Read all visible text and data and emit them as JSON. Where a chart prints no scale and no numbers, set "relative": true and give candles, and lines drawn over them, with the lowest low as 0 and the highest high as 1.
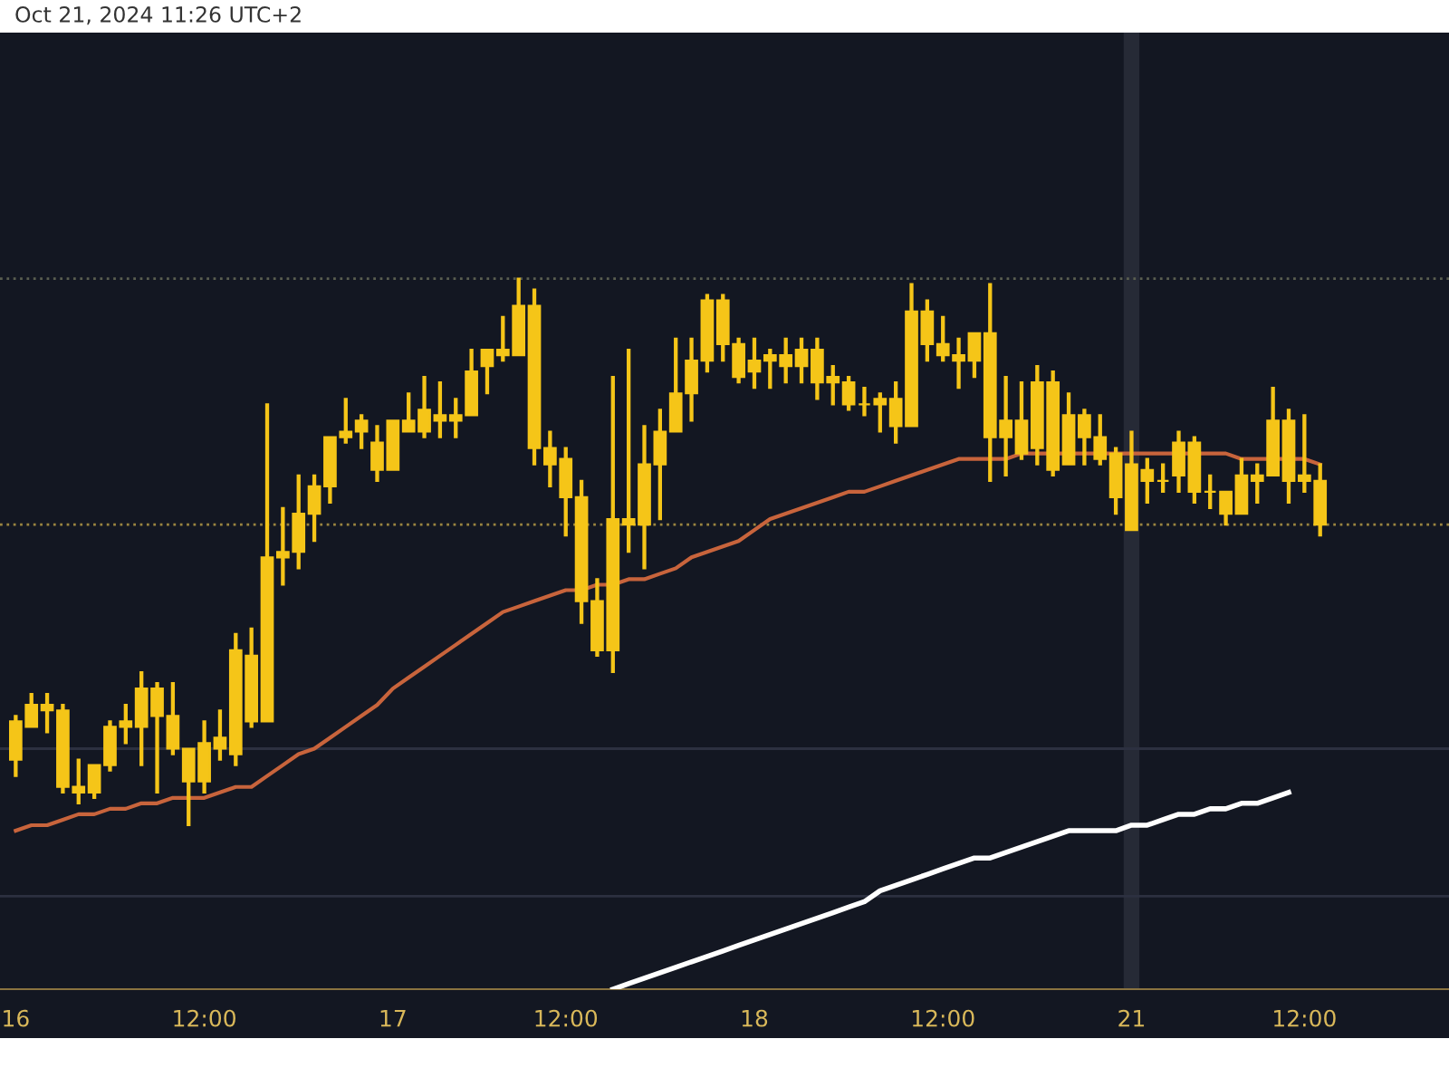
{
  "chart_data": {
    "type": "candlestick",
    "relative": true,
    "color": "#f5c518",
    "categories": [
      "16",
      null,
      null,
      null,
      null,
      null,
      null,
      null,
      null,
      null,
      null,
      null,
      "12:00",
      null,
      null,
      null,
      null,
      null,
      null,
      null,
      null,
      null,
      null,
      null,
      "17",
      null,
      null,
      null,
      null,
      null,
      null,
      null,
      null,
      null,
      null,
      "12:00",
      null,
      null,
      null,
      null,
      null,
      null,
      null,
      null,
      null,
      null,
      null,
      "18",
      null,
      null,
      null,
      null,
      null,
      null,
      null,
      null,
      null,
      null,
      null,
      "12:00",
      null,
      null,
      null,
      null,
      null,
      null,
      null,
      null,
      null,
      null,
      null,
      "21",
      null,
      null,
      null,
      null,
      null,
      null,
      null,
      null,
      null,
      null,
      "12:00",
      null
    ],
    "ohlc": [
      [
        0.12,
        0.2,
        0.09,
        0.19
      ],
      [
        0.18,
        0.24,
        0.18,
        0.22
      ],
      [
        0.21,
        0.24,
        0.17,
        0.22
      ],
      [
        0.07,
        0.22,
        0.06,
        0.21
      ],
      [
        0.06,
        0.12,
        0.04,
        0.07
      ],
      [
        0.06,
        0.11,
        0.05,
        0.11
      ],
      [
        0.11,
        0.19,
        0.1,
        0.18
      ],
      [
        0.18,
        0.22,
        0.15,
        0.19
      ],
      [
        0.18,
        0.28,
        0.11,
        0.25
      ],
      [
        0.2,
        0.26,
        0.06,
        0.25
      ],
      [
        0.14,
        0.26,
        0.13,
        0.2
      ],
      [
        0.08,
        0.14,
        0,
        0.14
      ],
      [
        0.08,
        0.19,
        0.06,
        0.15
      ],
      [
        0.14,
        0.21,
        0.12,
        0.16
      ],
      [
        0.13,
        0.35,
        0.11,
        0.32
      ],
      [
        0.19,
        0.36,
        0.18,
        0.31
      ],
      [
        0.19,
        0.77,
        0.19,
        0.49
      ],
      [
        0.49,
        0.58,
        0.44,
        0.5
      ],
      [
        0.5,
        0.64,
        0.47,
        0.57
      ],
      [
        0.57,
        0.64,
        0.52,
        0.62
      ],
      [
        0.62,
        0.71,
        0.59,
        0.71
      ],
      [
        0.71,
        0.78,
        0.7,
        0.72
      ],
      [
        0.72,
        0.75,
        0.69,
        0.74
      ],
      [
        0.65,
        0.73,
        0.63,
        0.7
      ],
      [
        0.65,
        0.74,
        0.65,
        0.74
      ],
      [
        0.72,
        0.79,
        0.72,
        0.74
      ],
      [
        0.72,
        0.82,
        0.71,
        0.76
      ],
      [
        0.74,
        0.81,
        0.71,
        0.75
      ],
      [
        0.74,
        0.78,
        0.71,
        0.75
      ],
      [
        0.75,
        0.87,
        0.75,
        0.83
      ],
      [
        0.84,
        0.87,
        0.79,
        0.87
      ],
      [
        0.86,
        0.93,
        0.85,
        0.87
      ],
      [
        0.86,
        1,
        0.86,
        0.95
      ],
      [
        0.69,
        0.98,
        0.66,
        0.95
      ],
      [
        0.66,
        0.72,
        0.62,
        0.69
      ],
      [
        0.6,
        0.69,
        0.53,
        0.67
      ],
      [
        0.41,
        0.63,
        0.37,
        0.6
      ],
      [
        0.32,
        0.45,
        0.31,
        0.41
      ],
      [
        0.32,
        0.82,
        0.28,
        0.56
      ],
      [
        0.55,
        0.87,
        0.5,
        0.56
      ],
      [
        0.55,
        0.73,
        0.47,
        0.66
      ],
      [
        0.66,
        0.76,
        0.56,
        0.72
      ],
      [
        0.72,
        0.89,
        0.72,
        0.79
      ],
      [
        0.79,
        0.89,
        0.74,
        0.85
      ],
      [
        0.85,
        0.97,
        0.83,
        0.96
      ],
      [
        0.88,
        0.97,
        0.85,
        0.96
      ],
      [
        0.82,
        0.89,
        0.81,
        0.88
      ],
      [
        0.83,
        0.89,
        0.8,
        0.85
      ],
      [
        0.85,
        0.87,
        0.8,
        0.86
      ],
      [
        0.84,
        0.89,
        0.81,
        0.86
      ],
      [
        0.84,
        0.89,
        0.81,
        0.87
      ],
      [
        0.81,
        0.89,
        0.78,
        0.87
      ],
      [
        0.81,
        0.84,
        0.77,
        0.82
      ],
      [
        0.77,
        0.82,
        0.76,
        0.81
      ],
      [
        0.77,
        0.8,
        0.75,
        0.77
      ],
      [
        0.77,
        0.79,
        0.72,
        0.78
      ],
      [
        0.73,
        0.81,
        0.7,
        0.78
      ],
      [
        0.73,
        0.99,
        0.73,
        0.94
      ],
      [
        0.88,
        0.96,
        0.85,
        0.94
      ],
      [
        0.86,
        0.93,
        0.85,
        0.88
      ],
      [
        0.85,
        0.89,
        0.8,
        0.86
      ],
      [
        0.85,
        0.9,
        0.82,
        0.9
      ],
      [
        0.71,
        0.99,
        0.63,
        0.9
      ],
      [
        0.71,
        0.82,
        0.64,
        0.74
      ],
      [
        0.68,
        0.81,
        0.67,
        0.74
      ],
      [
        0.69,
        0.84,
        0.66,
        0.81
      ],
      [
        0.65,
        0.83,
        0.64,
        0.81
      ],
      [
        0.66,
        0.79,
        0.66,
        0.75
      ],
      [
        0.71,
        0.76,
        0.66,
        0.75
      ],
      [
        0.67,
        0.75,
        0.66,
        0.71
      ],
      [
        0.6,
        0.69,
        0.57,
        0.68
      ],
      [
        0.54,
        0.72,
        0.54,
        0.66
      ],
      [
        0.63,
        0.67,
        0.59,
        0.65
      ],
      [
        0.63,
        0.66,
        0.61,
        0.63
      ],
      [
        0.64,
        0.72,
        0.61,
        0.7
      ],
      [
        0.61,
        0.71,
        0.59,
        0.7
      ],
      [
        0.61,
        0.64,
        0.58,
        0.61
      ],
      [
        0.57,
        0.61,
        0.55,
        0.61
      ],
      [
        0.57,
        0.67,
        0.57,
        0.64
      ],
      [
        0.63,
        0.66,
        0.59,
        0.64
      ],
      [
        0.64,
        0.8,
        0.64,
        0.74
      ],
      [
        0.63,
        0.76,
        0.59,
        0.74
      ],
      [
        0.63,
        0.75,
        0.61,
        0.64
      ],
      [
        0.55,
        0.66,
        0.53,
        0.63
      ]
    ],
    "series": [
      {
        "type": "line",
        "color": "#c8643c",
        "values": [
          -0.01,
          0.0,
          0.0,
          0.01,
          0.02,
          0.02,
          0.03,
          0.03,
          0.04,
          0.04,
          0.05,
          0.05,
          0.05,
          0.06,
          0.07,
          0.07,
          0.09,
          0.11,
          0.13,
          0.14,
          0.16,
          0.18,
          0.2,
          0.22,
          0.25,
          0.27,
          0.29,
          0.31,
          0.33,
          0.35,
          0.37,
          0.39,
          0.4,
          0.41,
          0.42,
          0.43,
          0.43,
          0.44,
          0.44,
          0.45,
          0.45,
          0.46,
          0.47,
          0.49,
          0.5,
          0.51,
          0.52,
          0.54,
          0.56,
          0.57,
          0.58,
          0.59,
          0.6,
          0.61,
          0.61,
          0.62,
          0.63,
          0.64,
          0.65,
          0.66,
          0.67,
          0.67,
          0.67,
          0.67,
          0.68,
          0.68,
          0.68,
          0.68,
          0.68,
          0.68,
          0.68,
          0.68,
          0.68,
          0.68,
          0.68,
          0.68,
          0.68,
          0.68,
          0.67,
          0.67,
          0.67,
          0.67,
          0.67,
          0.66
        ]
      },
      {
        "type": "line",
        "color": "#ffffff",
        "values": [
          null,
          null,
          null,
          null,
          null,
          null,
          null,
          null,
          null,
          null,
          null,
          null,
          null,
          null,
          null,
          null,
          null,
          null,
          null,
          null,
          null,
          null,
          null,
          null,
          null,
          null,
          null,
          null,
          null,
          null,
          null,
          null,
          null,
          null,
          null,
          null,
          null,
          null,
          -0.3,
          -0.29,
          -0.28,
          -0.27,
          -0.26,
          -0.25,
          -0.24,
          -0.23,
          -0.22,
          -0.21,
          -0.2,
          -0.19,
          -0.18,
          -0.17,
          -0.16,
          -0.15,
          -0.14,
          -0.12,
          -0.11,
          -0.1,
          -0.09,
          -0.08,
          -0.07,
          -0.06,
          -0.06,
          -0.05,
          -0.04,
          -0.03,
          -0.02,
          -0.01,
          -0.01,
          -0.01,
          -0.01,
          0.0,
          0.0,
          0.01,
          0.02,
          0.02,
          0.03,
          0.03,
          0.04,
          0.04,
          0.05,
          0.06,
          null,
          null
        ]
      }
    ],
    "ref_lines": [
      {
        "axis": "y",
        "value": 1.0,
        "color": "#5a5e50",
        "line_style": "dotted"
      },
      {
        "axis": "y",
        "value": 0.55,
        "color": "#9a8540",
        "line_style": "dotted"
      },
      {
        "axis": "y",
        "value": 0.14,
        "color": "#2c3040",
        "line_style": "solid"
      },
      {
        "axis": "y",
        "value": -0.13,
        "color": "#2c3040",
        "line_style": "solid"
      }
    ],
    "bands": [
      {
        "axis": "x",
        "from": "21",
        "to": "21",
        "color": "#262a36"
      }
    ],
    "tick_labels": "x",
    "annotations": [
      "Oct 21, 2024 11:26 UTC+2"
    ]
  }
}
